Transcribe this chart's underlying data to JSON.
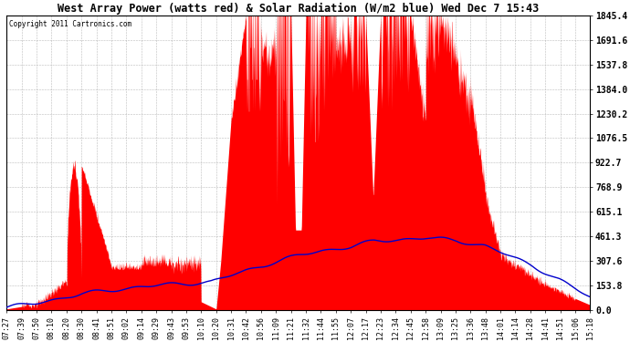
{
  "title": "West Array Power (watts red) & Solar Radiation (W/m2 blue) Wed Dec 7 15:43",
  "copyright": "Copyright 2011 Cartronics.com",
  "ymax": 1845.4,
  "ymin": 0.0,
  "yticks": [
    0.0,
    153.8,
    307.6,
    461.3,
    615.1,
    768.9,
    922.7,
    1076.5,
    1230.2,
    1384.0,
    1537.8,
    1691.6,
    1845.4
  ],
  "bg_color": "#ffffff",
  "plot_bg_color": "#ffffff",
  "red_color": "#ff0000",
  "blue_color": "#0000cc",
  "xtick_labels": [
    "07:27",
    "07:39",
    "07:50",
    "08:10",
    "08:20",
    "08:30",
    "08:41",
    "08:51",
    "09:02",
    "09:14",
    "09:29",
    "09:43",
    "09:53",
    "10:10",
    "10:20",
    "10:31",
    "10:42",
    "10:56",
    "11:09",
    "11:21",
    "11:32",
    "11:44",
    "11:55",
    "12:07",
    "12:17",
    "12:23",
    "12:34",
    "12:45",
    "12:58",
    "13:09",
    "13:25",
    "13:36",
    "13:48",
    "14:01",
    "14:14",
    "14:28",
    "14:41",
    "14:51",
    "15:06",
    "15:18"
  ],
  "red_data": [
    5,
    20,
    30,
    180,
    860,
    320,
    270,
    255,
    220,
    240,
    300,
    290,
    50,
    10,
    300,
    1200,
    1845,
    1845,
    1620,
    1845,
    500,
    1845,
    1845,
    1700,
    1845,
    1200,
    1845,
    1845,
    1200,
    1845,
    1550,
    1300,
    400,
    350,
    280,
    220,
    160,
    130,
    70,
    30
  ],
  "blue_data": [
    15,
    30,
    50,
    90,
    110,
    130,
    140,
    145,
    150,
    155,
    165,
    165,
    170,
    200,
    240,
    290,
    330,
    360,
    370,
    380,
    360,
    380,
    400,
    410,
    430,
    430,
    440,
    450,
    440,
    435,
    420,
    410,
    380,
    360,
    320,
    280,
    230,
    190,
    130,
    80
  ]
}
